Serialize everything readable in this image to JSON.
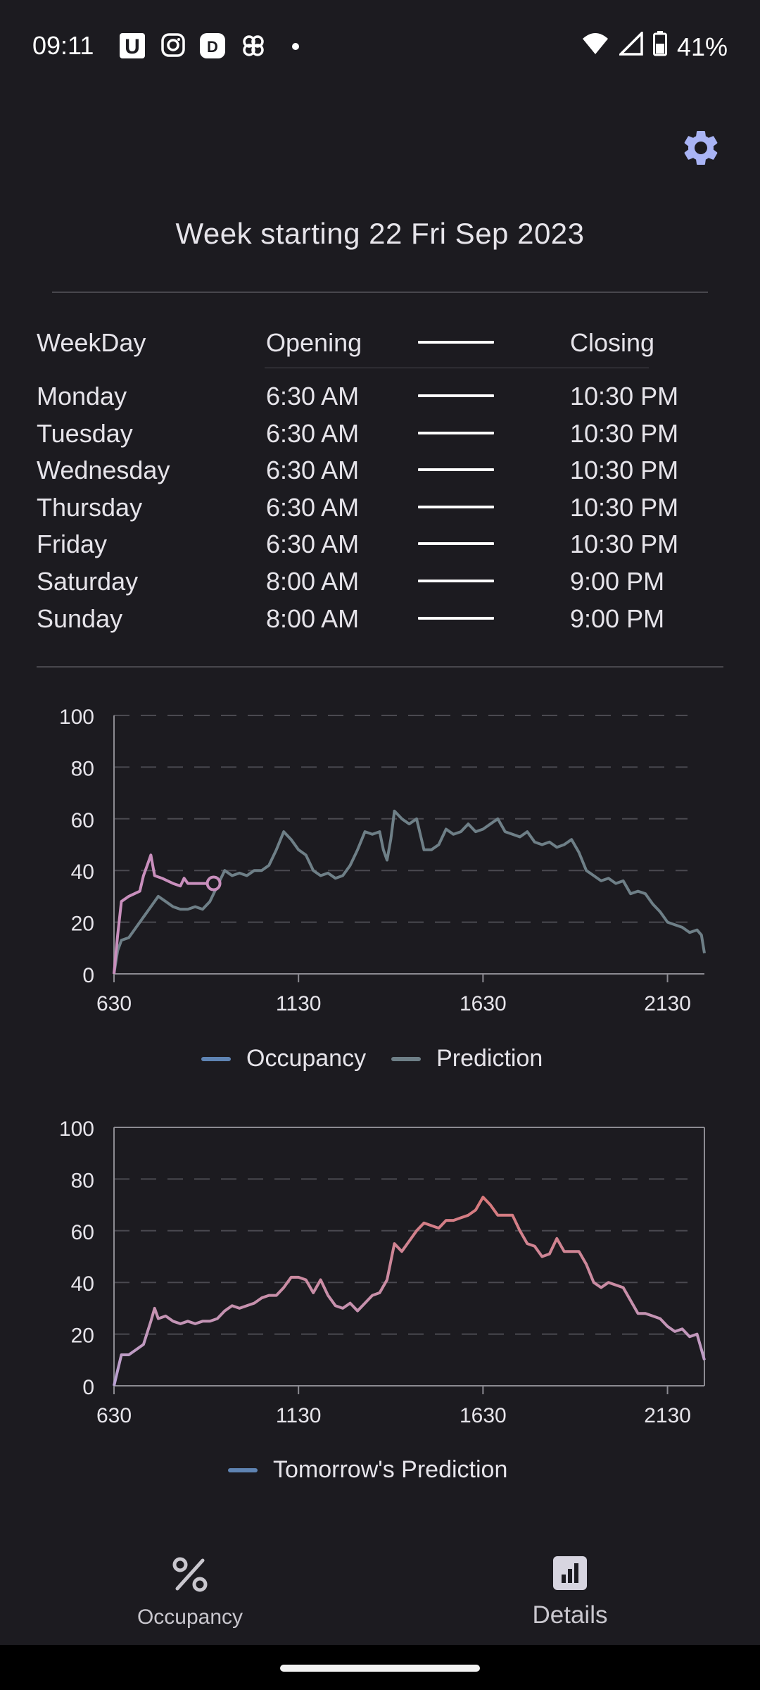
{
  "status_bar": {
    "time": "09:11",
    "battery": "41%",
    "notification_icons": [
      "u-app-icon",
      "instagram-icon",
      "dp-app-icon",
      "pinwheel-icon",
      "dot-icon"
    ],
    "system_icons": [
      "wifi-icon",
      "signal-icon",
      "battery-icon"
    ]
  },
  "header": {
    "settings_icon": "gear-icon",
    "week_title": "Week starting 22 Fri Sep 2023"
  },
  "schedule": {
    "headers": {
      "weekday": "WeekDay",
      "opening": "Opening",
      "closing": "Closing"
    },
    "rows": [
      {
        "day": "Monday",
        "opening": "6:30 AM",
        "closing": "10:30 PM"
      },
      {
        "day": "Tuesday",
        "opening": "6:30 AM",
        "closing": "10:30 PM"
      },
      {
        "day": "Wednesday",
        "opening": "6:30 AM",
        "closing": "10:30 PM"
      },
      {
        "day": "Thursday",
        "opening": "6:30 AM",
        "closing": "10:30 PM"
      },
      {
        "day": "Friday",
        "opening": "6:30 AM",
        "closing": "10:30 PM"
      },
      {
        "day": "Saturday",
        "opening": "8:00 AM",
        "closing": "9:00 PM"
      },
      {
        "day": "Sunday",
        "opening": "8:00 AM",
        "closing": "9:00 PM"
      }
    ]
  },
  "chart_data": [
    {
      "type": "line",
      "xlim": [
        630,
        2230
      ],
      "ylim": [
        0,
        100
      ],
      "xticks": [
        "630",
        "1130",
        "1630",
        "2130"
      ],
      "yticks": [
        "0",
        "20",
        "40",
        "60",
        "80",
        "100"
      ],
      "grid": "horizontal dashed",
      "legend_position": "bottom",
      "series": [
        {
          "name": "Occupancy",
          "color": "#c98fbd",
          "marker_last": true,
          "points": [
            [
              630,
              0
            ],
            [
              640,
              15
            ],
            [
              650,
              28
            ],
            [
              670,
              30
            ],
            [
              700,
              32
            ],
            [
              710,
              38
            ],
            [
              720,
              42
            ],
            [
              730,
              46
            ],
            [
              740,
              38
            ],
            [
              760,
              37
            ],
            [
              790,
              35
            ],
            [
              810,
              34
            ],
            [
              820,
              37
            ],
            [
              830,
              35
            ],
            [
              850,
              35
            ],
            [
              870,
              35
            ],
            [
              890,
              35
            ],
            [
              900,
              35
            ]
          ]
        },
        {
          "name": "Prediction",
          "color": "#6e7f87",
          "points": [
            [
              630,
              0
            ],
            [
              640,
              9
            ],
            [
              650,
              13
            ],
            [
              670,
              14
            ],
            [
              690,
              18
            ],
            [
              710,
              22
            ],
            [
              730,
              26
            ],
            [
              750,
              30
            ],
            [
              770,
              28
            ],
            [
              790,
              26
            ],
            [
              810,
              25
            ],
            [
              830,
              25
            ],
            [
              850,
              26
            ],
            [
              870,
              25
            ],
            [
              890,
              28
            ],
            [
              910,
              34
            ],
            [
              930,
              40
            ],
            [
              950,
              38
            ],
            [
              970,
              39
            ],
            [
              990,
              38
            ],
            [
              1010,
              40
            ],
            [
              1030,
              40
            ],
            [
              1050,
              42
            ],
            [
              1070,
              48
            ],
            [
              1090,
              55
            ],
            [
              1110,
              52
            ],
            [
              1130,
              48
            ],
            [
              1150,
              46
            ],
            [
              1170,
              40
            ],
            [
              1190,
              38
            ],
            [
              1210,
              39
            ],
            [
              1230,
              37
            ],
            [
              1250,
              38
            ],
            [
              1270,
              42
            ],
            [
              1290,
              48
            ],
            [
              1310,
              55
            ],
            [
              1330,
              54
            ],
            [
              1350,
              55
            ],
            [
              1360,
              48
            ],
            [
              1370,
              44
            ],
            [
              1380,
              52
            ],
            [
              1390,
              63
            ],
            [
              1410,
              60
            ],
            [
              1430,
              58
            ],
            [
              1450,
              60
            ],
            [
              1470,
              48
            ],
            [
              1490,
              48
            ],
            [
              1510,
              50
            ],
            [
              1530,
              56
            ],
            [
              1550,
              54
            ],
            [
              1570,
              55
            ],
            [
              1590,
              58
            ],
            [
              1610,
              55
            ],
            [
              1630,
              56
            ],
            [
              1650,
              58
            ],
            [
              1670,
              60
            ],
            [
              1690,
              55
            ],
            [
              1710,
              54
            ],
            [
              1730,
              53
            ],
            [
              1750,
              55
            ],
            [
              1770,
              51
            ],
            [
              1790,
              50
            ],
            [
              1810,
              51
            ],
            [
              1830,
              49
            ],
            [
              1850,
              50
            ],
            [
              1870,
              52
            ],
            [
              1890,
              47
            ],
            [
              1910,
              40
            ],
            [
              1930,
              38
            ],
            [
              1950,
              36
            ],
            [
              1970,
              37
            ],
            [
              1990,
              35
            ],
            [
              2010,
              36
            ],
            [
              2030,
              31
            ],
            [
              2050,
              32
            ],
            [
              2070,
              31
            ],
            [
              2090,
              27
            ],
            [
              2110,
              24
            ],
            [
              2130,
              20
            ],
            [
              2150,
              19
            ],
            [
              2170,
              18
            ],
            [
              2190,
              16
            ],
            [
              2210,
              17
            ],
            [
              2222,
              15
            ],
            [
              2230,
              8
            ]
          ]
        }
      ],
      "legend": [
        {
          "label": "Occupancy",
          "color": "#5f84b3"
        },
        {
          "label": "Prediction",
          "color": "#6e7f87"
        }
      ]
    },
    {
      "type": "line",
      "xlim": [
        630,
        2230
      ],
      "ylim": [
        0,
        100
      ],
      "xticks": [
        "630",
        "1130",
        "1630",
        "2130"
      ],
      "yticks": [
        "0",
        "20",
        "40",
        "60",
        "80",
        "100"
      ],
      "grid": "horizontal dashed",
      "legend_position": "bottom",
      "series": [
        {
          "name": "Tomorrow's Prediction",
          "gradient": [
            "#b9a3d4",
            "#d8787a"
          ],
          "points": [
            [
              630,
              0
            ],
            [
              640,
              6
            ],
            [
              650,
              12
            ],
            [
              670,
              12
            ],
            [
              690,
              14
            ],
            [
              710,
              16
            ],
            [
              730,
              25
            ],
            [
              740,
              30
            ],
            [
              750,
              26
            ],
            [
              770,
              27
            ],
            [
              790,
              25
            ],
            [
              810,
              24
            ],
            [
              830,
              25
            ],
            [
              850,
              24
            ],
            [
              870,
              25
            ],
            [
              890,
              25
            ],
            [
              910,
              26
            ],
            [
              930,
              29
            ],
            [
              950,
              31
            ],
            [
              970,
              30
            ],
            [
              990,
              31
            ],
            [
              1010,
              32
            ],
            [
              1030,
              34
            ],
            [
              1050,
              35
            ],
            [
              1070,
              35
            ],
            [
              1090,
              38
            ],
            [
              1110,
              42
            ],
            [
              1130,
              42
            ],
            [
              1150,
              41
            ],
            [
              1170,
              36
            ],
            [
              1190,
              41
            ],
            [
              1210,
              35
            ],
            [
              1230,
              31
            ],
            [
              1250,
              30
            ],
            [
              1270,
              32
            ],
            [
              1290,
              29
            ],
            [
              1310,
              32
            ],
            [
              1330,
              35
            ],
            [
              1350,
              36
            ],
            [
              1370,
              41
            ],
            [
              1390,
              55
            ],
            [
              1410,
              52
            ],
            [
              1430,
              56
            ],
            [
              1450,
              60
            ],
            [
              1470,
              63
            ],
            [
              1490,
              62
            ],
            [
              1510,
              61
            ],
            [
              1530,
              64
            ],
            [
              1550,
              64
            ],
            [
              1570,
              65
            ],
            [
              1590,
              66
            ],
            [
              1610,
              68
            ],
            [
              1630,
              73
            ],
            [
              1650,
              70
            ],
            [
              1670,
              66
            ],
            [
              1690,
              66
            ],
            [
              1710,
              66
            ],
            [
              1730,
              60
            ],
            [
              1750,
              55
            ],
            [
              1770,
              54
            ],
            [
              1790,
              50
            ],
            [
              1810,
              51
            ],
            [
              1830,
              57
            ],
            [
              1850,
              52
            ],
            [
              1870,
              52
            ],
            [
              1890,
              52
            ],
            [
              1910,
              47
            ],
            [
              1930,
              40
            ],
            [
              1950,
              38
            ],
            [
              1970,
              40
            ],
            [
              1990,
              39
            ],
            [
              2010,
              38
            ],
            [
              2030,
              33
            ],
            [
              2050,
              28
            ],
            [
              2070,
              28
            ],
            [
              2090,
              27
            ],
            [
              2110,
              26
            ],
            [
              2130,
              23
            ],
            [
              2150,
              21
            ],
            [
              2170,
              22
            ],
            [
              2190,
              19
            ],
            [
              2210,
              20
            ],
            [
              2222,
              14
            ],
            [
              2230,
              10
            ]
          ]
        }
      ],
      "legend": [
        {
          "label": "Tomorrow's Prediction",
          "color": "#5f84b3"
        }
      ]
    }
  ],
  "bottom_nav": {
    "items": [
      {
        "label": "Occupancy",
        "icon": "percent-icon",
        "selected": false
      },
      {
        "label": "Details",
        "icon": "bar-chart-icon",
        "selected": true
      }
    ]
  }
}
